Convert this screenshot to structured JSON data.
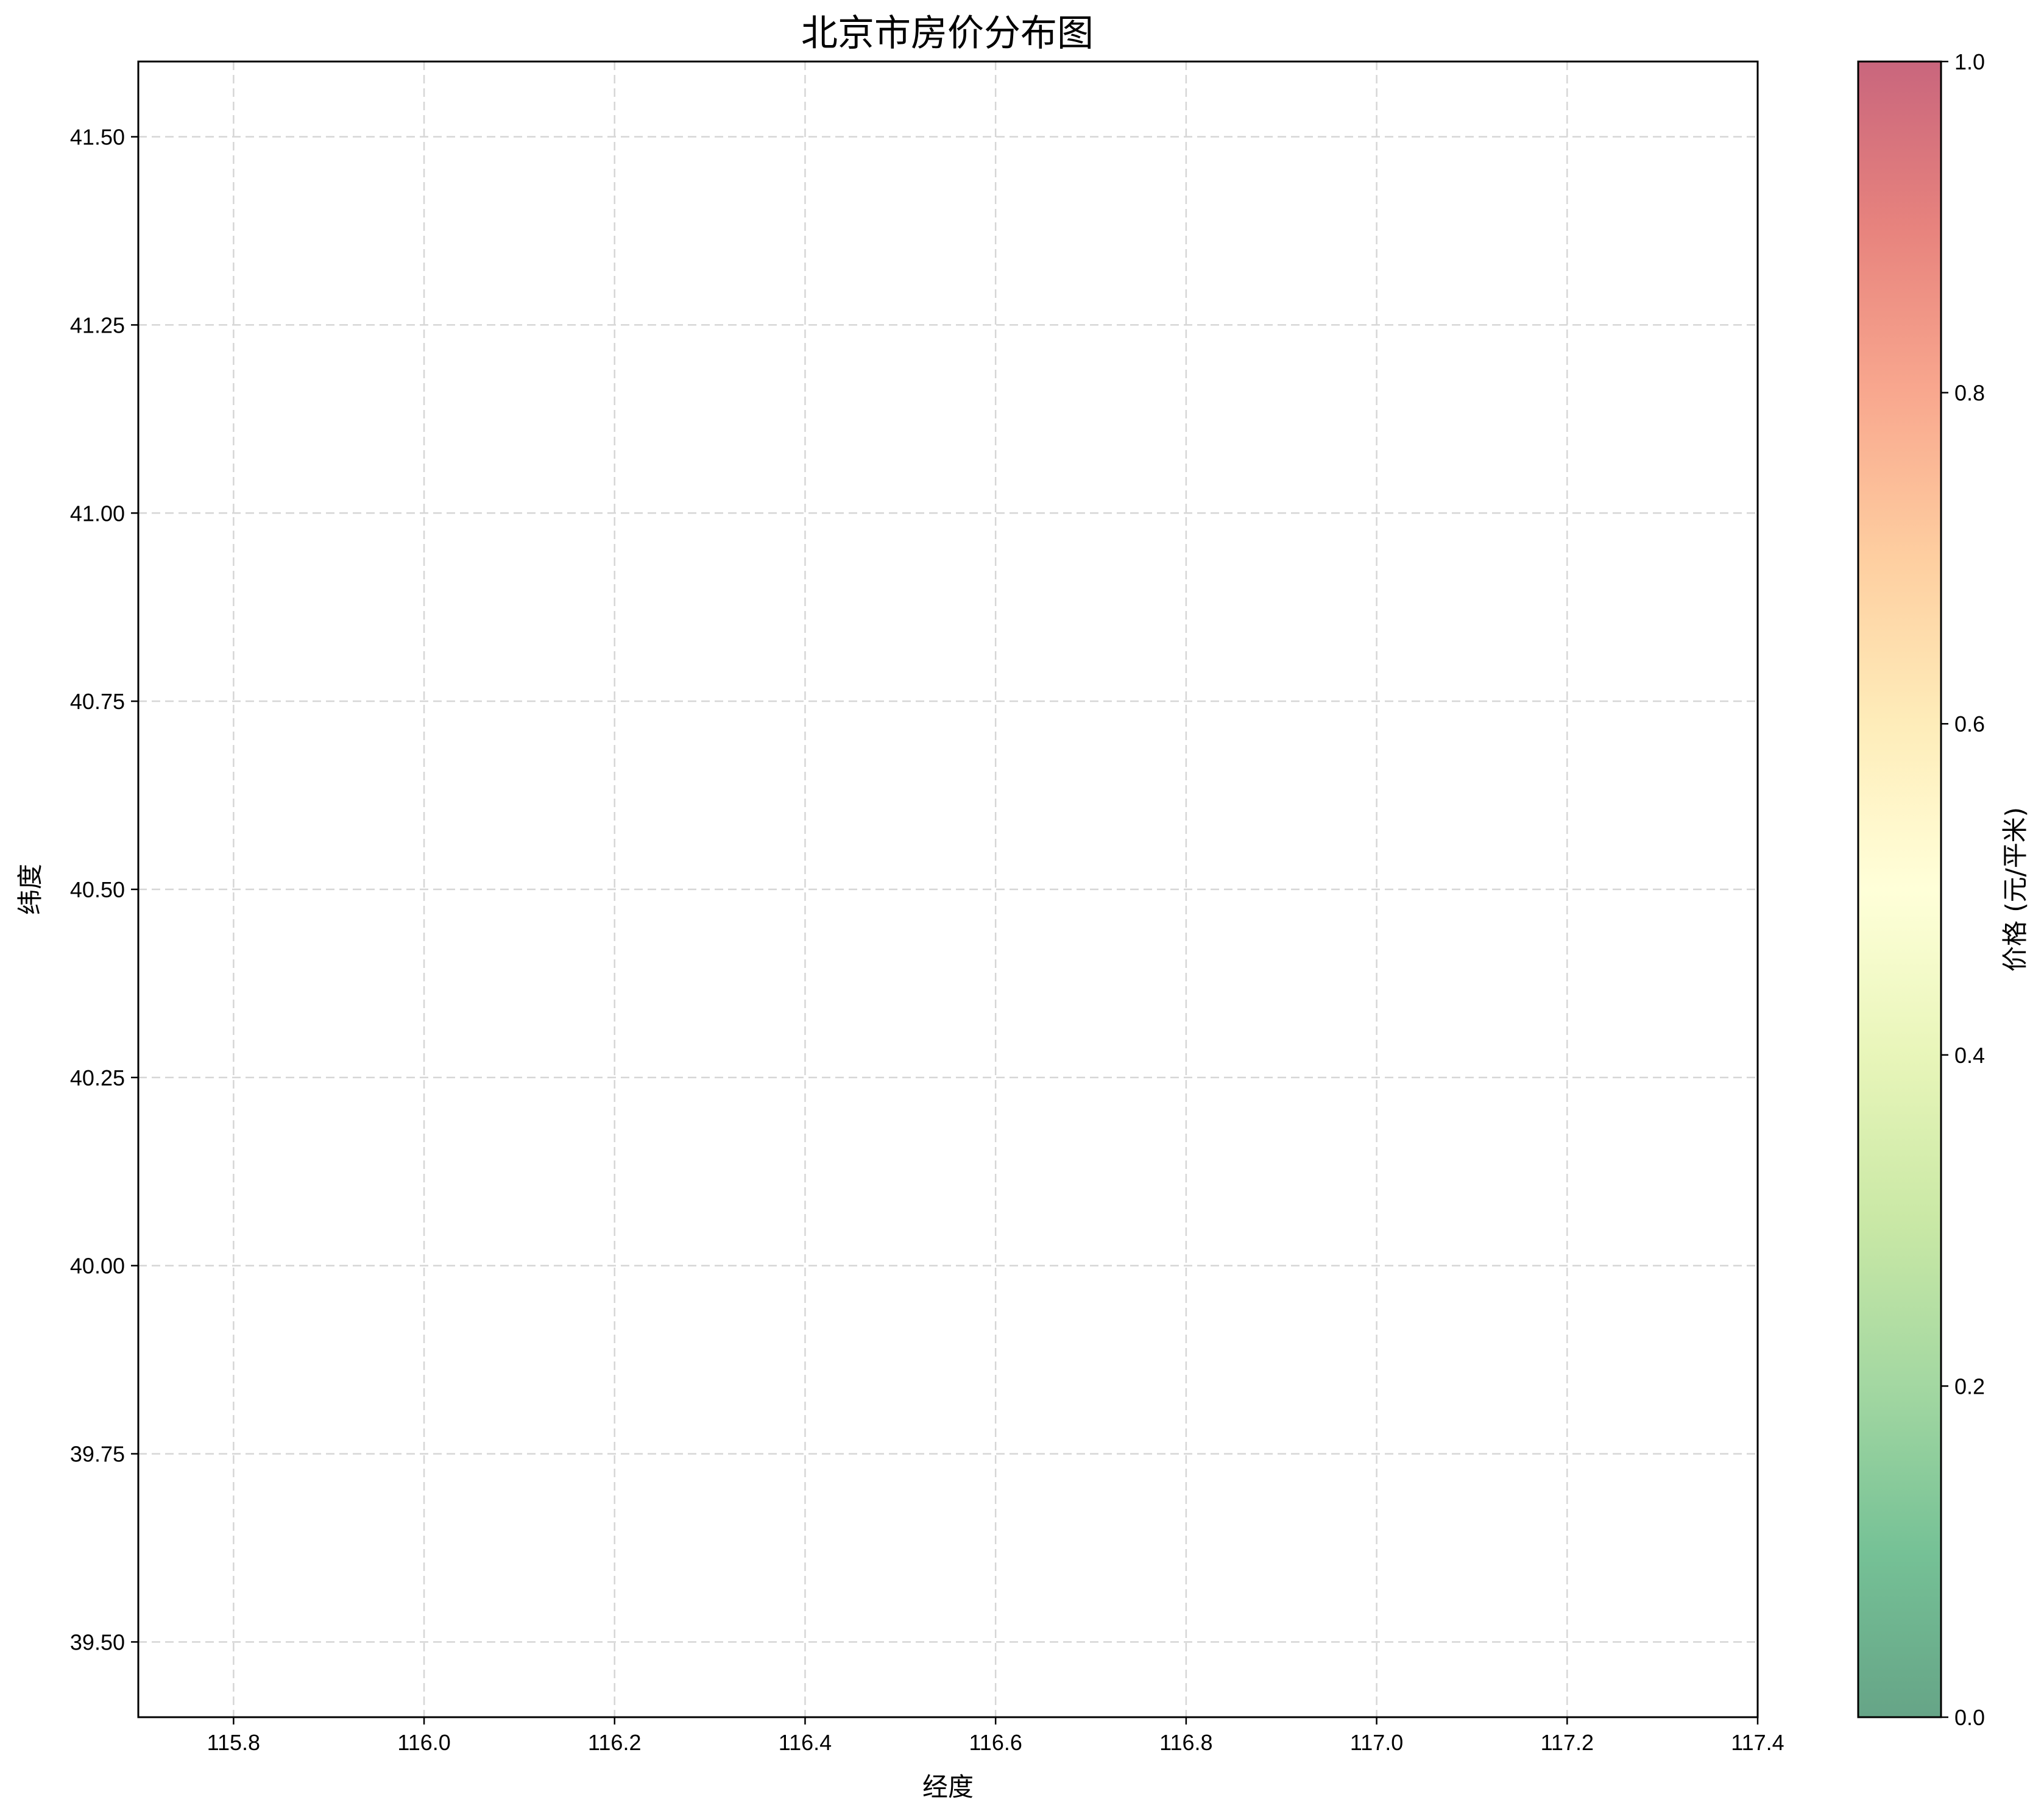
{
  "chart_data": {
    "type": "scatter",
    "title": "北京市房价分布图",
    "xlabel": "经度",
    "ylabel": "纬度",
    "xlim": [
      115.7,
      117.4
    ],
    "ylim": [
      39.4,
      41.6
    ],
    "xticks": [
      115.8,
      116.0,
      116.2,
      116.4,
      116.6,
      116.8,
      117.0,
      117.2,
      117.4
    ],
    "xtick_labels": [
      "115.8",
      "116.0",
      "116.2",
      "116.4",
      "116.6",
      "116.8",
      "117.0",
      "117.2",
      "117.4"
    ],
    "yticks": [
      39.5,
      39.75,
      40.0,
      40.25,
      40.5,
      40.75,
      41.0,
      41.25,
      41.5
    ],
    "ytick_labels": [
      "39.50",
      "39.75",
      "40.00",
      "40.25",
      "40.50",
      "40.75",
      "41.00",
      "41.25",
      "41.50"
    ],
    "grid": true,
    "points": [],
    "colorbar": {
      "label": "价格 (元/平米)",
      "range": [
        0.0,
        1.0
      ],
      "ticks": [
        0.0,
        0.2,
        0.4,
        0.6,
        0.8,
        1.0
      ],
      "tick_labels": [
        "0.0",
        "0.2",
        "0.4",
        "0.6",
        "0.8",
        "1.0"
      ],
      "colormap": "RdYlGn_r",
      "alpha": 0.6,
      "colors": [
        "#006837",
        "#1a9850",
        "#66bd63",
        "#a6d96a",
        "#d9ef8b",
        "#ffffbf",
        "#fee08b",
        "#fdae61",
        "#f46d43",
        "#d73027",
        "#a50026"
      ]
    }
  }
}
